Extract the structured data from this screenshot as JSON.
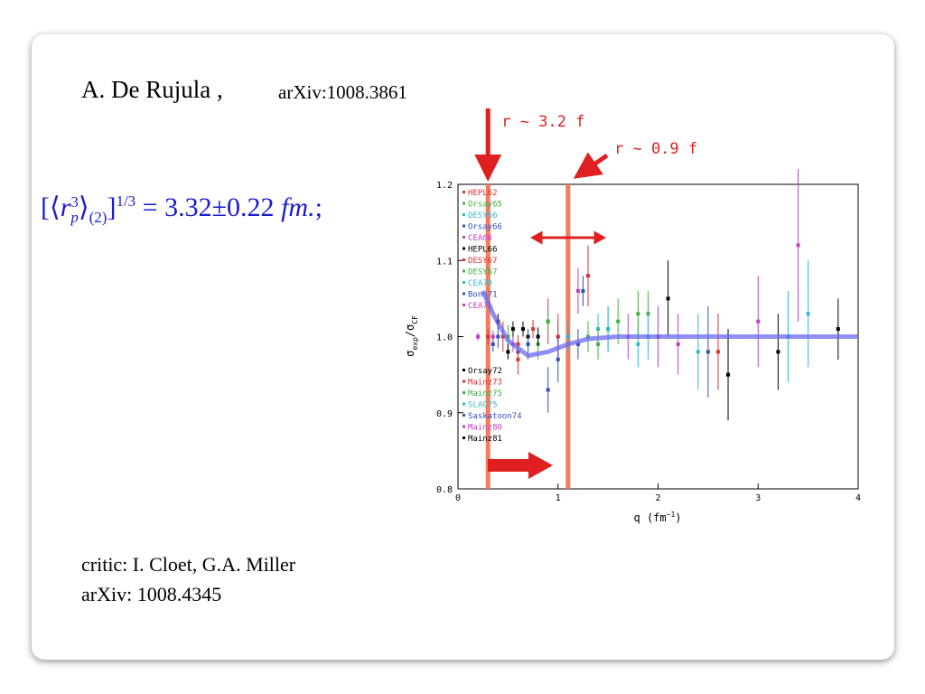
{
  "header": {
    "author": "A. De Rujula ,",
    "reference": "arXiv:1008.3861"
  },
  "formula": {
    "symbol": "r",
    "power": "3",
    "subscript": "p",
    "order": "(2)",
    "exponent": "1/3",
    "value": "= 3.32±0.22",
    "unit": "fm.",
    "end": ";"
  },
  "footer": {
    "critic": "critic:  I. Cloet, G.A. Miller",
    "reference": "arXiv: 1008.4345"
  },
  "chart_data": {
    "type": "scatter",
    "xlabel": [
      "q (fm",
      "−1",
      ")"
    ],
    "ylabel": [
      "σ",
      "exp",
      "/σ",
      "CF"
    ],
    "xlim": [
      0,
      4
    ],
    "xticks": [
      0,
      1,
      2,
      3,
      4
    ],
    "ylim": [
      0.8,
      1.2
    ],
    "yticks": [
      0.8,
      0.9,
      {
        "value": 1,
        "label": "1.0"
      },
      1.1,
      1.2
    ],
    "series": [
      {
        "name": "HEPL62",
        "color": "#e03030",
        "x": [
          0.45,
          0.9,
          1.3
        ],
        "values": [
          1.0,
          1.02,
          1.08
        ],
        "errors": [
          0.02,
          0.03,
          0.04
        ]
      },
      {
        "name": "Orsay65",
        "color": "#40b040",
        "x": [
          0.5,
          0.8,
          1.5
        ],
        "values": [
          1.0,
          0.99,
          1.01
        ],
        "errors": [
          0.015,
          0.02,
          0.03
        ]
      },
      {
        "name": "DESY66",
        "color": "#30b8d0",
        "x": [
          1.0,
          1.4,
          1.8
        ],
        "values": [
          1.0,
          1.01,
          0.99
        ],
        "errors": [
          0.02,
          0.02,
          0.03
        ]
      },
      {
        "name": "Orsay66",
        "color": "#3050c0",
        "x": [
          0.35,
          0.6,
          1.2
        ],
        "values": [
          0.99,
          0.98,
          0.99
        ],
        "errors": [
          0.01,
          0.015,
          0.02
        ]
      },
      {
        "name": "CEA66",
        "color": "#c040c0",
        "x": [
          1.2,
          2.0,
          3.4
        ],
        "values": [
          1.06,
          1.0,
          1.12
        ],
        "errors": [
          0.03,
          0.04,
          0.1
        ]
      },
      {
        "name": "HEPL66",
        "color": "#000000",
        "x": [
          0.4,
          0.55,
          0.7
        ],
        "values": [
          1.02,
          1.01,
          1.0
        ],
        "errors": [
          0.01,
          0.01,
          0.01
        ]
      },
      {
        "name": "DESY67",
        "color": "#e03030",
        "x": [
          0.6,
          1.0,
          2.6
        ],
        "values": [
          0.97,
          1.0,
          0.98
        ],
        "errors": [
          0.02,
          0.03,
          0.05
        ]
      },
      {
        "name": "DESY67",
        "color": "#40b040",
        "x": [
          1.3,
          1.6,
          1.9
        ],
        "values": [
          1.0,
          1.02,
          1.03
        ],
        "errors": [
          0.02,
          0.03,
          0.03
        ]
      },
      {
        "name": "CEA70",
        "color": "#30b8d0",
        "x": [
          1.1,
          1.5,
          3.3
        ],
        "values": [
          1.0,
          1.01,
          1.0
        ],
        "errors": [
          0.02,
          0.03,
          0.06
        ]
      },
      {
        "name": "Bonn71",
        "color": "#3050c0",
        "x": [
          0.9,
          1.25,
          2.5
        ],
        "values": [
          0.93,
          1.06,
          0.98
        ],
        "errors": [
          0.03,
          0.02,
          0.06
        ]
      },
      {
        "name": "CEA71",
        "color": "#c040c0",
        "x": [
          1.7,
          2.2,
          3.0
        ],
        "values": [
          1.0,
          0.99,
          1.02
        ],
        "errors": [
          0.03,
          0.04,
          0.06
        ]
      },
      {
        "name": "Orsay72",
        "color": "#000000",
        "x": [
          0.5,
          0.65,
          0.8
        ],
        "values": [
          0.98,
          1.01,
          1.0
        ],
        "errors": [
          0.01,
          0.01,
          0.012
        ]
      },
      {
        "name": "Mainz73",
        "color": "#e03030",
        "x": [
          0.3,
          0.6,
          0.75
        ],
        "values": [
          1.0,
          0.99,
          1.01
        ],
        "errors": [
          0.01,
          0.012,
          0.012
        ]
      },
      {
        "name": "Mainz75",
        "color": "#40b040",
        "x": [
          0.9,
          1.4,
          1.8
        ],
        "values": [
          1.02,
          0.99,
          1.03
        ],
        "errors": [
          0.015,
          0.02,
          0.03
        ]
      },
      {
        "name": "SLAC75",
        "color": "#30b8d0",
        "x": [
          1.9,
          2.4,
          3.5
        ],
        "values": [
          1.0,
          0.98,
          1.03
        ],
        "errors": [
          0.03,
          0.05,
          0.07
        ]
      },
      {
        "name": "Saskatoon74",
        "color": "#3050c0",
        "x": [
          0.4,
          0.7,
          1.0
        ],
        "values": [
          1.0,
          0.99,
          0.97
        ],
        "errors": [
          0.015,
          0.02,
          0.03
        ]
      },
      {
        "name": "Mainz80",
        "color": "#c040c0",
        "x": [
          0.2,
          0.35,
          0.55
        ],
        "values": [
          1.0,
          1.0,
          0.99
        ],
        "errors": [
          0.005,
          0.008,
          0.01
        ]
      },
      {
        "name": "Mainz81",
        "color": "#000000",
        "x": [
          2.1,
          2.7,
          3.2,
          3.8
        ],
        "values": [
          1.05,
          0.95,
          0.98,
          1.01
        ],
        "errors": [
          0.05,
          0.06,
          0.05,
          0.04
        ]
      }
    ],
    "curve": {
      "color": "#6a6af0",
      "x": [
        0.25,
        0.35,
        0.5,
        0.7,
        0.9,
        1.1,
        1.3,
        1.6,
        2,
        3,
        4
      ],
      "values": [
        1.06,
        1.03,
        0.995,
        0.975,
        0.98,
        0.99,
        0.997,
        1,
        1,
        1,
        1
      ]
    },
    "annotations": [
      {
        "text": "r ~ 3.2 f",
        "x": 0.3
      },
      {
        "text": "r ~ 0.9 f",
        "x": 1.1
      }
    ]
  }
}
